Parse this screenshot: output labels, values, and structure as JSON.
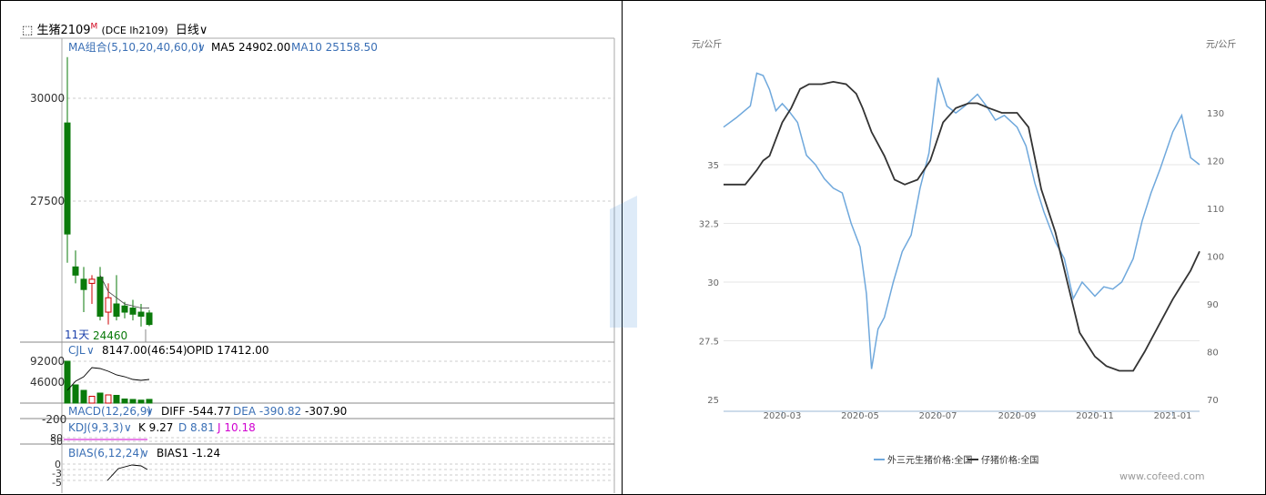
{
  "left_panel": {
    "instrument_icon": "link-icon",
    "instrument_name": "生猪2109",
    "instrument_superscript": "M",
    "instrument_code": "(DCE lh2109)",
    "period_label": "日线",
    "ma_label": "MA组合(5,10,20,40,60,0)",
    "ma5_text": "MA5 24902.00",
    "ma10_text": "MA10 25158.50",
    "days_label": "11天",
    "low_label": "24460",
    "cjl_label": "CJL",
    "cjl_value": "8147.00(46:54)",
    "opid_value": "OPID 17412.00",
    "macd_label": "MACD(12,26,9)",
    "macd_diff": "DIFF -544.77",
    "macd_dea": "DEA -390.82",
    "macd_val": "-307.90",
    "kdj_label": "KDJ(9,3,3)",
    "kdj_k": "K 9.27",
    "kdj_d": "D 8.81",
    "kdj_j": "J 10.18",
    "bias_label": "BIAS(6,12,24)",
    "bias1": "BIAS1 -1.24",
    "colors": {
      "up": "#cc0000",
      "down": "#0a7a0a",
      "label_blue": "#3a6fb5",
      "kdj_j": "#d000d0"
    }
  },
  "chart_data": [
    {
      "type": "candlestick",
      "title": "",
      "price_ticks": [
        "30000",
        "27500"
      ],
      "ylim": [
        23800,
        31200
      ],
      "candles": [
        {
          "o": 29400,
          "h": 31000,
          "l": 26000,
          "c": 26700
        },
        {
          "o": 25900,
          "h": 26300,
          "l": 25500,
          "c": 25700
        },
        {
          "o": 25600,
          "h": 25900,
          "l": 24800,
          "c": 25350
        },
        {
          "o": 25500,
          "h": 25700,
          "l": 25000,
          "c": 25600
        },
        {
          "o": 25650,
          "h": 25900,
          "l": 24600,
          "c": 24700
        },
        {
          "o": 24800,
          "h": 25500,
          "l": 24500,
          "c": 25150
        },
        {
          "o": 25000,
          "h": 25700,
          "l": 24600,
          "c": 24700
        },
        {
          "o": 24950,
          "h": 25050,
          "l": 24650,
          "c": 24800
        },
        {
          "o": 24900,
          "h": 25100,
          "l": 24600,
          "c": 24750
        },
        {
          "o": 24800,
          "h": 25000,
          "l": 24450,
          "c": 24700
        },
        {
          "o": 24780,
          "h": 24850,
          "l": 24460,
          "c": 24500
        }
      ],
      "ma5": [
        null,
        null,
        null,
        null,
        25700,
        25300,
        25150,
        25000,
        24950,
        24900,
        24902
      ],
      "volume_ticks": [
        "92000",
        "46000"
      ],
      "volume": [
        92000,
        40000,
        28000,
        15000,
        22000,
        18000,
        17000,
        9000,
        8000,
        6500,
        8147
      ],
      "opid": [
        28000,
        48000,
        58000,
        78000,
        76000,
        70000,
        62000,
        58000,
        52000,
        50000,
        52000
      ],
      "macd_ticks": [
        "-200"
      ],
      "kdj_ticks": [
        "80",
        "50"
      ],
      "bias_ticks": [
        "0",
        "-3",
        "-5"
      ]
    },
    {
      "type": "line",
      "title": "",
      "y_left_unit": "元/公斤",
      "y_right_unit": "元/公斤",
      "y_left_ticks": [
        "35",
        "32.5",
        "30",
        "27.5",
        "25"
      ],
      "y_left_lim": [
        25,
        37.6
      ],
      "y_right_ticks": [
        "130",
        "120",
        "110",
        "100",
        "90",
        "80",
        "70"
      ],
      "y_right_lim": [
        70,
        137
      ],
      "x_ticks": [
        "2020-03",
        "2020-05",
        "2020-07",
        "2020-09",
        "2020-11",
        "2021-01"
      ],
      "x_start": "2020-01-15",
      "x_end": "2021-01-22",
      "series": [
        {
          "name": "外三元生猪价格:全国",
          "axis": "left",
          "color": "#6fa8dc",
          "points": [
            [
              "2020-01-15",
              36.6
            ],
            [
              "2020-01-25",
              37.0
            ],
            [
              "2020-02-05",
              37.5
            ],
            [
              "2020-02-10",
              38.9
            ],
            [
              "2020-02-15",
              38.8
            ],
            [
              "2020-02-20",
              38.2
            ],
            [
              "2020-02-25",
              37.3
            ],
            [
              "2020-03-01",
              37.6
            ],
            [
              "2020-03-06",
              37.3
            ],
            [
              "2020-03-13",
              36.8
            ],
            [
              "2020-03-20",
              35.4
            ],
            [
              "2020-03-27",
              35.0
            ],
            [
              "2020-04-03",
              34.4
            ],
            [
              "2020-04-10",
              34.0
            ],
            [
              "2020-04-17",
              33.8
            ],
            [
              "2020-04-24",
              32.5
            ],
            [
              "2020-05-01",
              31.5
            ],
            [
              "2020-05-06",
              29.5
            ],
            [
              "2020-05-10",
              26.3
            ],
            [
              "2020-05-15",
              28.0
            ],
            [
              "2020-05-20",
              28.5
            ],
            [
              "2020-05-27",
              30.0
            ],
            [
              "2020-06-03",
              31.3
            ],
            [
              "2020-06-10",
              32.0
            ],
            [
              "2020-06-17",
              34.0
            ],
            [
              "2020-06-24",
              35.5
            ],
            [
              "2020-07-01",
              38.7
            ],
            [
              "2020-07-08",
              37.5
            ],
            [
              "2020-07-15",
              37.2
            ],
            [
              "2020-07-22",
              37.5
            ],
            [
              "2020-08-01",
              38.0
            ],
            [
              "2020-08-08",
              37.5
            ],
            [
              "2020-08-15",
              36.9
            ],
            [
              "2020-08-22",
              37.1
            ],
            [
              "2020-09-01",
              36.6
            ],
            [
              "2020-09-08",
              35.8
            ],
            [
              "2020-09-15",
              34.2
            ],
            [
              "2020-09-22",
              33.0
            ],
            [
              "2020-10-01",
              31.7
            ],
            [
              "2020-10-08",
              31.0
            ],
            [
              "2020-10-15",
              29.3
            ],
            [
              "2020-10-22",
              30.0
            ],
            [
              "2020-11-01",
              29.4
            ],
            [
              "2020-11-08",
              29.8
            ],
            [
              "2020-11-15",
              29.7
            ],
            [
              "2020-11-22",
              30.0
            ],
            [
              "2020-12-01",
              31.0
            ],
            [
              "2020-12-08",
              32.6
            ],
            [
              "2020-12-15",
              33.8
            ],
            [
              "2020-12-22",
              34.8
            ],
            [
              "2021-01-01",
              36.4
            ],
            [
              "2021-01-08",
              37.1
            ],
            [
              "2021-01-15",
              35.3
            ],
            [
              "2021-01-22",
              35.0
            ]
          ]
        },
        {
          "name": "仔猪价格:全国",
          "axis": "right",
          "color": "#333333",
          "points": [
            [
              "2020-01-15",
              115
            ],
            [
              "2020-02-01",
              115
            ],
            [
              "2020-02-10",
              118
            ],
            [
              "2020-02-15",
              120
            ],
            [
              "2020-02-20",
              121
            ],
            [
              "2020-03-01",
              128
            ],
            [
              "2020-03-08",
              131
            ],
            [
              "2020-03-15",
              135
            ],
            [
              "2020-03-22",
              136
            ],
            [
              "2020-04-01",
              136
            ],
            [
              "2020-04-10",
              136.5
            ],
            [
              "2020-04-20",
              136
            ],
            [
              "2020-04-28",
              134
            ],
            [
              "2020-05-03",
              131
            ],
            [
              "2020-05-10",
              126
            ],
            [
              "2020-05-20",
              121
            ],
            [
              "2020-05-28",
              116
            ],
            [
              "2020-06-05",
              115
            ],
            [
              "2020-06-15",
              116
            ],
            [
              "2020-06-25",
              120
            ],
            [
              "2020-07-05",
              128
            ],
            [
              "2020-07-15",
              131
            ],
            [
              "2020-07-25",
              132
            ],
            [
              "2020-08-01",
              132
            ],
            [
              "2020-08-10",
              131
            ],
            [
              "2020-08-20",
              130
            ],
            [
              "2020-09-01",
              130
            ],
            [
              "2020-09-10",
              127
            ],
            [
              "2020-09-20",
              114
            ],
            [
              "2020-10-01",
              105
            ],
            [
              "2020-10-10",
              95
            ],
            [
              "2020-10-20",
              84
            ],
            [
              "2020-11-01",
              79
            ],
            [
              "2020-11-10",
              77
            ],
            [
              "2020-11-20",
              76
            ],
            [
              "2020-12-01",
              76
            ],
            [
              "2020-12-10",
              80
            ],
            [
              "2020-12-20",
              85
            ],
            [
              "2021-01-01",
              91
            ],
            [
              "2021-01-08",
              94
            ],
            [
              "2021-01-15",
              97
            ],
            [
              "2021-01-22",
              101
            ]
          ]
        }
      ],
      "watermark": "www.cofeed.com",
      "legend_position": "bottom"
    }
  ]
}
